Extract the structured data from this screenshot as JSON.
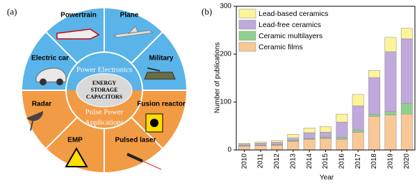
{
  "diagram": {
    "label": "(a)",
    "sectors": [
      "Powertrain",
      "Plane",
      "Electric car",
      "Military",
      "Radar",
      "Fusion reactor",
      "EMP",
      "Pulsed laser"
    ],
    "inner_top": "Power Electronics",
    "center": [
      "ENERGY",
      "STORAGE",
      "CAPACITORS"
    ],
    "inner_bottom": [
      "Pulse Power",
      "Applications"
    ]
  },
  "chart_data": {
    "type": "stacked_bar",
    "label": "(b)",
    "x_label": "Year",
    "y_label": "Number of publications",
    "categories": [
      "2010",
      "2011",
      "2012",
      "2013",
      "2014",
      "2015",
      "2016",
      "2017",
      "2018",
      "2019",
      "2020"
    ],
    "series": [
      {
        "name": "Ceramic films",
        "color": "#f9c896",
        "values": [
          8,
          9,
          10,
          18,
          22,
          24,
          22,
          37,
          70,
          73,
          75
        ]
      },
      {
        "name": "Ceramic multilayers",
        "color": "#8fd08f",
        "values": [
          1,
          1,
          1,
          2,
          2,
          3,
          4,
          5,
          5,
          7,
          22
        ]
      },
      {
        "name": "Lead-free ceramics",
        "color": "#c0a9dc",
        "values": [
          3,
          4,
          5,
          5,
          12,
          10,
          32,
          50,
          76,
          125,
          135
        ]
      },
      {
        "name": "Lead-based ceramics",
        "color": "#fdf39b",
        "values": [
          2,
          3,
          4,
          8,
          10,
          12,
          17,
          24,
          15,
          30,
          22
        ]
      }
    ],
    "ylim": [
      0,
      300
    ],
    "yticks": [
      0,
      100,
      200,
      300
    ],
    "legend": "upper-left"
  }
}
